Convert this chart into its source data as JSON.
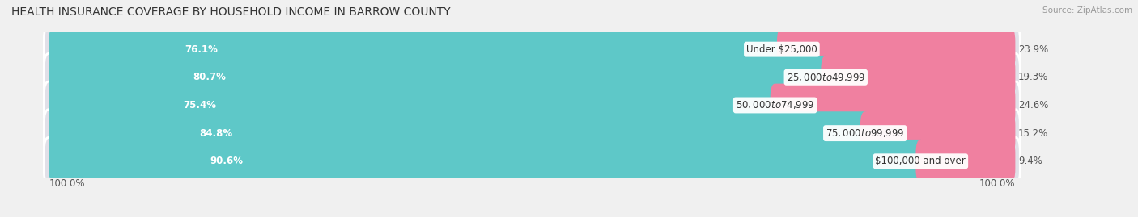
{
  "title": "HEALTH INSURANCE COVERAGE BY HOUSEHOLD INCOME IN BARROW COUNTY",
  "source": "Source: ZipAtlas.com",
  "categories": [
    "Under $25,000",
    "$25,000 to $49,999",
    "$50,000 to $74,999",
    "$75,000 to $99,999",
    "$100,000 and over"
  ],
  "with_coverage": [
    76.1,
    80.7,
    75.4,
    84.8,
    90.6
  ],
  "without_coverage": [
    23.9,
    19.3,
    24.6,
    15.2,
    9.4
  ],
  "color_with": "#5ec8c8",
  "color_without": "#f080a0",
  "bg_color": "#f0f0f0",
  "bar_bg_color": "#e0e0e8",
  "title_fontsize": 10,
  "label_fontsize": 8.5,
  "cat_fontsize": 8.5,
  "legend_fontsize": 9,
  "left_label": "100.0%",
  "right_label": "100.0%",
  "total_bar_width": 100.0,
  "x_min": -5,
  "x_max": 105
}
